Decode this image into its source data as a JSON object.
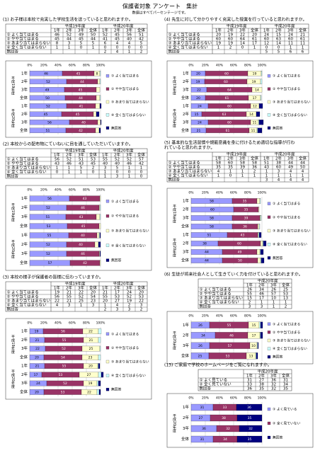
{
  "header": {
    "title": "保護者対象 アンケート　集計",
    "note": "数値はすべてパーセンテージです。"
  },
  "axis": {
    "xlim": [
      0,
      100
    ],
    "xticks": [
      {
        "value": 0,
        "label": "0%"
      },
      {
        "value": 20,
        "label": "20%"
      },
      {
        "value": 40,
        "label": "40%"
      },
      {
        "value": 60,
        "label": "60%"
      },
      {
        "value": 80,
        "label": "80%"
      },
      {
        "value": 100,
        "label": "100%"
      }
    ]
  },
  "sections": [
    {
      "question_lines": [
        "(1) お子様は本校で充実した学校生活を送っていると思われますか。"
      ],
      "years": [
        "平成19年度",
        "平成20年度"
      ],
      "grades": [
        "1年",
        "2年",
        "3年",
        "全体"
      ],
      "rows": [
        {
          "label": "① よく当てはまる",
          "color": "#9999ff",
          "values": [
            46,
            52,
            49,
            50,
            52,
            45,
            56,
            51
          ]
        },
        {
          "label": "② やや当てはまる",
          "color": "#993366",
          "values": [
            45,
            44,
            45,
            44,
            41,
            45,
            40,
            42
          ]
        },
        {
          "label": "③ あまり当てはまらない",
          "color": "#ffffcc",
          "values": [
            8,
            3,
            5,
            5,
            6,
            4,
            4,
            5
          ]
        },
        {
          "label": "④ 全く当てはまらない",
          "color": "#ccffff",
          "values": [
            1,
            1,
            0,
            1,
            0,
            0,
            0,
            0
          ]
        },
        {
          "label": "無回答",
          "color": "#000080",
          "values": [
            null,
            null,
            null,
            null,
            2,
            4,
            1,
            2
          ]
        }
      ]
    },
    {
      "question_lines": [
        "(2) 本校からの配布物にていねいに目を通していただいていますか。"
      ],
      "years": [
        "平成19年度",
        "平成20年度"
      ],
      "grades": [
        "1年",
        "2年",
        "3年",
        "全体"
      ],
      "rows": [
        {
          "label": "① よく当てはまる",
          "color": "#9999ff",
          "values": [
            56,
            52,
            51,
            53,
            55,
            52,
            52,
            57
          ]
        },
        {
          "label": "② やや当てはまる",
          "color": "#993366",
          "values": [
            43,
            46,
            43,
            45,
            40,
            40,
            46,
            42
          ]
        },
        {
          "label": "③ あまり当てはまらない",
          "color": "#ffffcc",
          "values": [
            1,
            1,
            5,
            2,
            3,
            5,
            1,
            1
          ]
        },
        {
          "label": "④ 全く当てはまらない",
          "color": "#ccffff",
          "values": [
            0,
            1,
            1,
            0,
            1,
            0,
            0,
            0
          ]
        },
        {
          "label": "無回答",
          "color": "#000080",
          "values": [
            null,
            null,
            null,
            null,
            1,
            3,
            1,
            0
          ]
        }
      ]
    },
    {
      "question_lines": [
        "(3) 本校の様子が保護者の皆様に伝わっていますか。"
      ],
      "years": [
        "平成19年度",
        "平成20年度"
      ],
      "grades": [
        "1年",
        "2年",
        "3年",
        "全体"
      ],
      "rows": [
        {
          "label": "① よく当てはまる",
          "color": "#9999ff",
          "values": [
            19,
            21,
            22,
            20,
            21,
            17,
            24,
            20
          ]
        },
        {
          "label": "② やや当てはまる",
          "color": "#993366",
          "values": [
            56,
            55,
            52,
            54,
            55,
            53,
            52,
            53
          ]
        },
        {
          "label": "③ あまり当てはまらない",
          "color": "#ffffcc",
          "values": [
            22,
            21,
            25,
            23,
            20,
            27,
            19,
            22
          ]
        },
        {
          "label": "④ 全く当てはまらない",
          "color": "#ccffff",
          "values": [
            4,
            3,
            1,
            3,
            1,
            4,
            2,
            3
          ]
        },
        {
          "label": "無回答",
          "color": "#000080",
          "values": [
            null,
            null,
            null,
            null,
            2,
            3,
            3,
            2
          ]
        }
      ]
    },
    {
      "question_lines": [
        "(4) 先生に対して分かりやすく充実した授業を行っていると思われますか。"
      ],
      "years": [
        "平成19年度",
        "平成20年度"
      ],
      "grades": [
        "1年",
        "2年",
        "3年",
        "全体"
      ],
      "rows": [
        {
          "label": "① よく当てはまる",
          "color": "#9999ff",
          "values": [
            20,
            19,
            22,
            20,
            24,
            15,
            24,
            21
          ]
        },
        {
          "label": "② やや当てはまる",
          "color": "#993366",
          "values": [
            60,
            60,
            64,
            61,
            60,
            63,
            60,
            61
          ]
        },
        {
          "label": "③ あまり当てはまらない",
          "color": "#ffffcc",
          "values": [
            19,
            19,
            14,
            17,
            12,
            14,
            11,
            11
          ]
        },
        {
          "label": "④ 全く当てはまらない",
          "color": "#ccffff",
          "values": [
            1,
            2,
            0,
            1,
            0,
            0,
            1,
            1
          ]
        },
        {
          "label": "無回答",
          "color": "#000080",
          "values": [
            null,
            null,
            null,
            null,
            5,
            5,
            6,
            6
          ]
        }
      ]
    },
    {
      "question_lines": [
        "(5) 基本的な生活習慣や規範意識を身に付けるため適切な指導が行わ",
        "れていると思われますか。"
      ],
      "years": [
        "平成19年度",
        "平成20年度"
      ],
      "grades": [
        "1年",
        "2年",
        "3年",
        "全体"
      ],
      "rows": [
        {
          "label": "① よく当てはまる",
          "color": "#9999ff",
          "values": [
            58,
            60,
            58,
            58,
            51,
            38,
            44,
            44
          ]
        },
        {
          "label": "② やや当てはまる",
          "color": "#993366",
          "values": [
            35,
            35,
            39,
            36,
            43,
            60,
            49,
            50
          ]
        },
        {
          "label": "③ あまり当てはまらない",
          "color": "#ffffcc",
          "values": [
            4,
            1,
            1,
            2,
            1,
            3,
            4,
            4
          ]
        },
        {
          "label": "④ 全く当てはまらない",
          "color": "#ccffff",
          "values": [
            1,
            0,
            1,
            1,
            1,
            1,
            1,
            1
          ]
        },
        {
          "label": "無回答",
          "color": "#000080",
          "values": [
            null,
            null,
            null,
            null,
            3,
            4,
            4,
            4
          ]
        }
      ]
    },
    {
      "question_lines": [
        "(6) 生徒が将来社会人として生きていく力を付けていると思われますか。"
      ],
      "years": [
        "平成20年度"
      ],
      "grades": [
        "1年",
        "2年",
        "3年",
        "全体"
      ],
      "rows": [
        {
          "label": "① よく当てはまる",
          "color": "#9999ff",
          "values": [
            26,
            34,
            26,
            25
          ]
        },
        {
          "label": "② やや当てはまる",
          "color": "#993366",
          "values": [
            55,
            46,
            57,
            53
          ]
        },
        {
          "label": "③ あまり当てはまらない",
          "color": "#ffffcc",
          "values": [
            15,
            17,
            10,
            13
          ]
        },
        {
          "label": "④ 全く当てはまらない",
          "color": "#ccffff",
          "values": [
            2,
            1,
            1,
            1
          ]
        },
        {
          "label": "無回答",
          "color": "#000080",
          "values": [
            3,
            3,
            1,
            2
          ]
        }
      ]
    },
    {
      "question_lines": [
        "(13) ご家庭で学校のホームページをご覧になれますか。"
      ],
      "years": [
        "平成20年度"
      ],
      "grades": [
        "1年",
        "2年",
        "3年",
        "全体"
      ],
      "rows": [
        {
          "label": "① よく見ている",
          "color": "#9999ff",
          "values": [
            31,
            27,
            36,
            31
          ]
        },
        {
          "label": "② 全く見ていない",
          "color": "#993366",
          "values": [
            33,
            38,
            32,
            34
          ]
        },
        {
          "label": "無回答",
          "color": "#000080",
          "values": [
            36,
            35,
            32,
            35
          ]
        }
      ]
    }
  ]
}
